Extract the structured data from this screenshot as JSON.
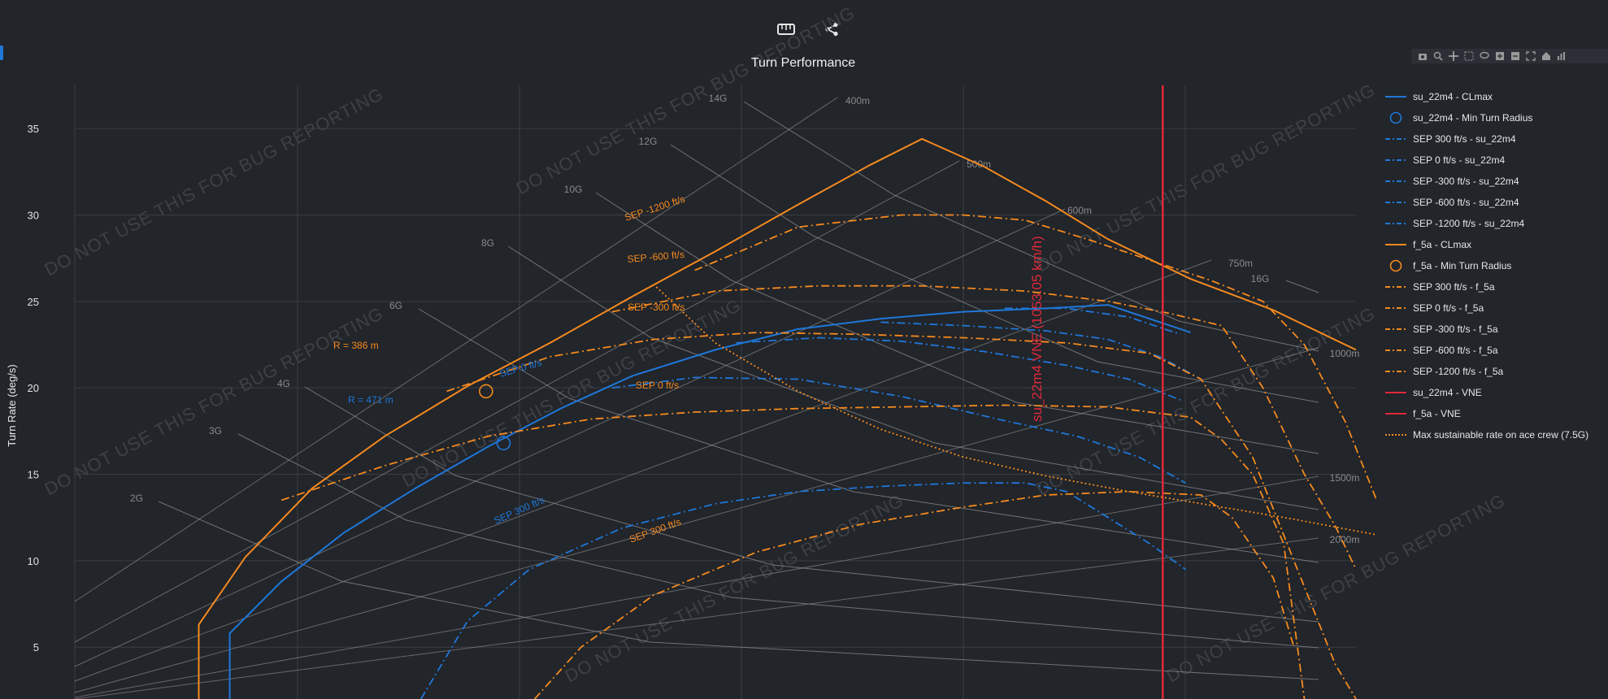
{
  "toolbar": {
    "ruler_icon": "ruler-icon",
    "share_icon": "share-icon"
  },
  "modebar": [
    "camera-icon",
    "zoom-icon",
    "pan-icon",
    "box-select-icon",
    "lasso-icon",
    "zoom-in-icon",
    "zoom-out-icon",
    "autoscale-icon",
    "home-icon",
    "plotly-logo-icon"
  ],
  "watermark": "DO NOT USE THIS FOR BUG REPORTING",
  "chart_data": {
    "type": "line",
    "title": "Turn Performance",
    "xlabel": "",
    "ylabel": "Turn Rate (deg/s)",
    "y_ticks": [
      5,
      10,
      15,
      20,
      25,
      30,
      35
    ],
    "ylim": [
      2,
      37.5
    ],
    "xlim": [
      0,
      1240
    ],
    "x_unit": "km/h (not labeled)",
    "grid": true,
    "legend_position": "right",
    "g_lines": [
      "2G",
      "3G",
      "4G",
      "6G",
      "8G",
      "10G",
      "12G",
      "14G",
      "16G"
    ],
    "radius_lines": [
      "400m",
      "500m",
      "600m",
      "750m",
      "1000m",
      "1500m",
      "2000m"
    ],
    "series": [
      {
        "name": "su_22m4 - CLmax",
        "color": "#1f77d9",
        "dash": "solid",
        "x": [
          150,
          150,
          200,
          260,
          330,
          400,
          470,
          540,
          620,
          700,
          780,
          860,
          940,
          1000,
          1080
        ],
        "y": [
          2,
          5.8,
          8.8,
          11.6,
          14.2,
          16.6,
          18.8,
          20.7,
          22.2,
          23.4,
          24.0,
          24.4,
          24.6,
          24.8,
          23.2
        ]
      },
      {
        "name": "su_22m4 - Min Turn Radius",
        "color": "#1f77d9",
        "dash": "marker",
        "x": [
          415
        ],
        "y": [
          16.8
        ]
      },
      {
        "name": "SEP 300 ft/s - su_22m4",
        "color": "#1f77d9",
        "dash": "dashdot",
        "x": [
          335,
          380,
          440,
          530,
          620,
          700,
          780,
          860,
          920,
          960,
          1000,
          1040,
          1075
        ],
        "y": [
          2,
          6.5,
          9.5,
          11.9,
          13.3,
          14.0,
          14.3,
          14.5,
          14.5,
          14.0,
          12.5,
          11.0,
          9.5
        ]
      },
      {
        "name": "SEP 0 ft/s - su_22m4",
        "color": "#1f77d9",
        "dash": "dashdot",
        "x": [
          520,
          600,
          700,
          800,
          900,
          970,
          1030,
          1075
        ],
        "y": [
          20.0,
          20.6,
          20.5,
          19.5,
          18.1,
          17.2,
          16.0,
          14.5
        ]
      },
      {
        "name": "SEP -300 ft/s - su_22m4",
        "color": "#1f77d9",
        "dash": "dashdot",
        "x": [
          640,
          720,
          800,
          880,
          960,
          1020,
          1070
        ],
        "y": [
          22.6,
          22.9,
          22.7,
          22.1,
          21.3,
          20.5,
          19.3
        ]
      },
      {
        "name": "SEP -600 ft/s - su_22m4",
        "color": "#1f77d9",
        "dash": "dashdot",
        "x": [
          780,
          860,
          940,
          1000,
          1050,
          1090
        ],
        "y": [
          23.8,
          23.6,
          23.3,
          22.8,
          21.8,
          20.5
        ]
      },
      {
        "name": "SEP -1200 ft/s - su_22m4",
        "color": "#1f77d9",
        "dash": "dashdot",
        "x": [
          900,
          960,
          1020,
          1070
        ],
        "y": [
          24.6,
          24.6,
          24.1,
          23.1
        ]
      },
      {
        "name": "f_5a - CLmax",
        "color": "#f58a1f",
        "dash": "solid",
        "x": [
          120,
          120,
          165,
          230,
          300,
          380,
          460,
          540,
          620,
          700,
          770,
          820,
          880,
          940,
          1000,
          1080,
          1160,
          1240
        ],
        "y": [
          2,
          6.3,
          10.2,
          14.2,
          17.2,
          20.1,
          22.6,
          25.3,
          27.9,
          30.6,
          32.9,
          34.4,
          32.8,
          30.8,
          28.6,
          26.3,
          24.5,
          22.2
        ]
      },
      {
        "name": "f_5a - Min Turn Radius",
        "color": "#f58a1f",
        "dash": "marker",
        "x": [
          398
        ],
        "y": [
          19.8
        ]
      },
      {
        "name": "SEP 300 ft/s - f_5a",
        "color": "#f58a1f",
        "dash": "dashdot",
        "x": [
          445,
          490,
          560,
          660,
          760,
          860,
          940,
          1020,
          1090,
          1120,
          1160,
          1180
        ],
        "y": [
          2,
          5.0,
          8.0,
          10.5,
          12.1,
          13.1,
          13.8,
          14.0,
          13.8,
          12.5,
          9.0,
          5.0
        ]
      },
      {
        "name": "SEP 0 ft/s - f_5a",
        "color": "#f58a1f",
        "dash": "dashdot",
        "x": [
          200,
          300,
          400,
          500,
          600,
          700,
          800,
          900,
          1000,
          1080,
          1110,
          1140,
          1170,
          1190
        ],
        "y": [
          13.5,
          15.5,
          17.2,
          18.2,
          18.6,
          18.8,
          18.9,
          19.0,
          18.9,
          18.3,
          17.0,
          15.0,
          11.0,
          2.0
        ]
      },
      {
        "name": "SEP -300 ft/s - f_5a",
        "color": "#f58a1f",
        "dash": "dashdot",
        "x": [
          360,
          460,
          560,
          660,
          760,
          860,
          960,
          1040,
          1090,
          1140,
          1180,
          1220,
          1240
        ],
        "y": [
          19.8,
          21.8,
          22.8,
          23.2,
          23.1,
          22.9,
          22.6,
          22.0,
          20.5,
          16.0,
          10.0,
          4.0,
          2.0
        ]
      },
      {
        "name": "SEP -600 ft/s - f_5a",
        "color": "#f58a1f",
        "dash": "dashdot",
        "x": [
          520,
          620,
          720,
          820,
          920,
          1000,
          1060,
          1110,
          1150,
          1190,
          1220,
          1240
        ],
        "y": [
          24.4,
          25.6,
          25.9,
          25.9,
          25.6,
          25.0,
          24.3,
          23.6,
          20.0,
          15.0,
          12.0,
          9.5
        ]
      },
      {
        "name": "SEP -1200 ft/s - f_5a",
        "color": "#f58a1f",
        "dash": "dashdot",
        "x": [
          600,
          700,
          800,
          860,
          920,
          980,
          1040,
          1100,
          1150,
          1190,
          1230,
          1260
        ],
        "y": [
          26.8,
          29.3,
          30.0,
          30.0,
          29.7,
          28.6,
          27.4,
          26.2,
          25.0,
          22.5,
          18.0,
          13.5
        ]
      },
      {
        "name": "su_22m4 - VNE",
        "color": "#e0293a",
        "dash": "solid",
        "x": [
          1053,
          1053
        ],
        "y": [
          2,
          37.5
        ]
      },
      {
        "name": "f_5a - VNE",
        "color": "#e0293a",
        "dash": "solid",
        "x": [
          1053,
          1053
        ],
        "y": [
          2,
          37.5
        ]
      },
      {
        "name": "Max sustainable rate on ace crew (7.5G)",
        "color": "#f58a1f",
        "dash": "dot",
        "x": [
          560,
          620,
          700,
          780,
          860,
          940,
          1020,
          1100,
          1180,
          1260
        ],
        "y": [
          26.0,
          22.6,
          19.8,
          17.6,
          16.0,
          14.9,
          14.0,
          13.2,
          12.4,
          11.5
        ]
      }
    ],
    "annotations": [
      {
        "text": "SEP 0 ft/s",
        "color": "#1f77d9"
      },
      {
        "text": "SEP 300 ft/s",
        "color": "#1f77d9"
      },
      {
        "text": "R = 471 m",
        "color": "#1f77d9"
      },
      {
        "text": "SEP -1200 ft/s",
        "color": "#f58a1f"
      },
      {
        "text": "SEP -600 ft/s",
        "color": "#f58a1f"
      },
      {
        "text": "SEP -300 ft/s",
        "color": "#f58a1f"
      },
      {
        "text": "SEP 0 ft/s",
        "color": "#f58a1f"
      },
      {
        "text": "SEP 300 ft/s",
        "color": "#f58a1f"
      },
      {
        "text": "R = 386 m",
        "color": "#f58a1f"
      },
      {
        "text": "su_22m4 VNE (1053.05 km/h)",
        "color": "#e0293a"
      }
    ]
  }
}
